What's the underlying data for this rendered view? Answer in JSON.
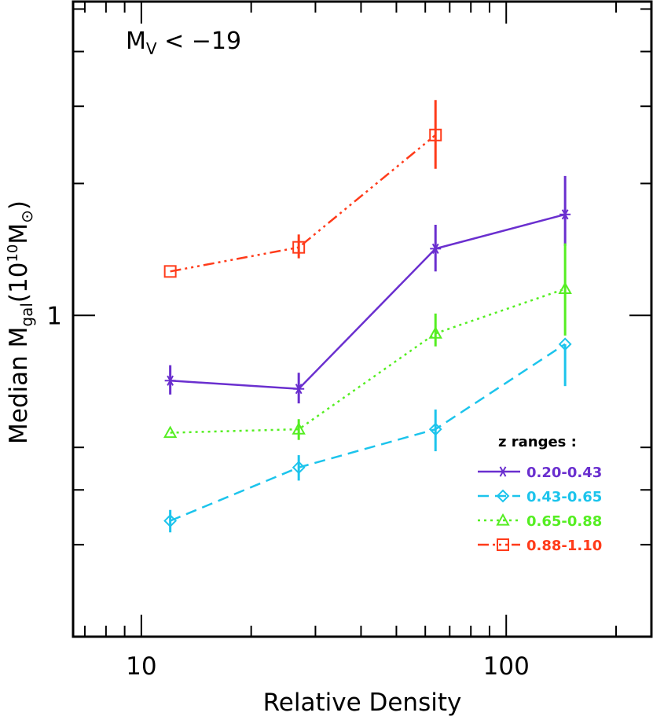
{
  "chart_data": {
    "type": "line",
    "annotation": {
      "main": "M",
      "sub": "V",
      "rest": " <  −19"
    },
    "xlabel": "Relative Density",
    "ylabel": {
      "a": "Median M",
      "sub": "gal",
      "b": "(10",
      "sup": "10",
      "c": "M",
      "sun": "⊙",
      "d": ")"
    },
    "xscale": "log",
    "yscale": "log",
    "xlim": [
      6.5,
      250
    ],
    "ylim": [
      0.185,
      5.2
    ],
    "x_tick_labels": [
      "10",
      "100"
    ],
    "x_major_ticks": [
      10,
      100
    ],
    "x_minor_ticks": [
      7,
      8,
      9,
      20,
      30,
      40,
      50,
      60,
      70,
      80,
      90,
      200
    ],
    "y_tick_labels": [
      "1"
    ],
    "y_major_ticks": [
      1
    ],
    "y_minor_ticks": [
      0.3,
      0.4,
      0.5,
      2,
      3,
      4,
      5
    ],
    "legend": {
      "title": "z ranges :",
      "placement": "lower-right"
    },
    "series": [
      {
        "name": "0.20-0.43",
        "color": "#6a2fcf",
        "marker": "asterisk",
        "dash": "",
        "x": [
          12,
          27,
          64,
          145
        ],
        "y": [
          0.71,
          0.68,
          1.42,
          1.7
        ],
        "err_lo": [
          0.05,
          0.05,
          0.16,
          0.26
        ],
        "err_hi": [
          0.06,
          0.06,
          0.19,
          0.38
        ]
      },
      {
        "name": "0.43-0.65",
        "color": "#1cc4ec",
        "marker": "diamond",
        "dash": "14,8",
        "x": [
          12,
          27,
          64,
          145
        ],
        "y": [
          0.34,
          0.45,
          0.55,
          0.86
        ],
        "err_lo": [
          0.02,
          0.03,
          0.06,
          0.17
        ],
        "err_hi": [
          0.02,
          0.03,
          0.06,
          0.0
        ]
      },
      {
        "name": "0.65-0.88",
        "color": "#55ee22",
        "marker": "triangle",
        "dash": "3,5",
        "x": [
          12,
          27,
          64,
          145
        ],
        "y": [
          0.54,
          0.55,
          0.91,
          1.15
        ],
        "err_lo": [
          0.0,
          0.03,
          0.06,
          0.25
        ],
        "err_hi": [
          0.0,
          0.03,
          0.1,
          0.31
        ]
      },
      {
        "name": "0.88-1.10",
        "color": "#ff3b1a",
        "marker": "square",
        "dash": "14,5,3,5,3,5,3,5",
        "x": [
          12,
          27,
          64
        ],
        "y": [
          1.26,
          1.43,
          2.58
        ],
        "err_lo": [
          0.0,
          0.08,
          0.42
        ],
        "err_hi": [
          0.0,
          0.1,
          0.52
        ]
      }
    ]
  }
}
